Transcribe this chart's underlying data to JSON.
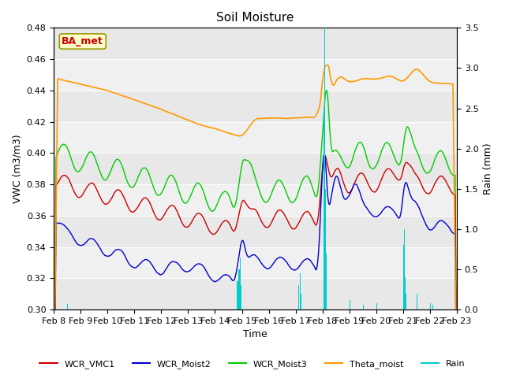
{
  "title": "Soil Moisture",
  "xlabel": "Time",
  "ylabel_left": "VWC (m3/m3)",
  "ylabel_right": "Rain (mm)",
  "ylim_left": [
    0.3,
    0.48
  ],
  "ylim_right": [
    0.0,
    3.5
  ],
  "xtick_labels": [
    "Feb 8",
    "Feb 9",
    "Feb 10",
    "Feb 11",
    "Feb 12",
    "Feb 13",
    "Feb 14",
    "Feb 15",
    "Feb 16",
    "Feb 17",
    "Feb 18",
    "Feb 19",
    "Feb 20",
    "Feb 21",
    "Feb 22",
    "Feb 23"
  ],
  "colors": {
    "WCR_VMC1": "#cc0000",
    "WCR_Moist2": "#0000cc",
    "WCR_Moist3": "#00cc00",
    "Theta_moist": "#ff9900",
    "Rain": "#00cccc"
  },
  "band_colors": [
    "#e8e8e8",
    "#f0f0f0"
  ],
  "band_edges": [
    0.3,
    0.32,
    0.34,
    0.36,
    0.38,
    0.4,
    0.42,
    0.44,
    0.46,
    0.48
  ],
  "annotation_text": "BA_met",
  "annotation_color": "#cc0000",
  "annotation_bg": "#ffffcc",
  "annotation_edge": "#999900",
  "title_fontsize": 11,
  "axis_fontsize": 9,
  "tick_fontsize": 8,
  "legend_fontsize": 8
}
